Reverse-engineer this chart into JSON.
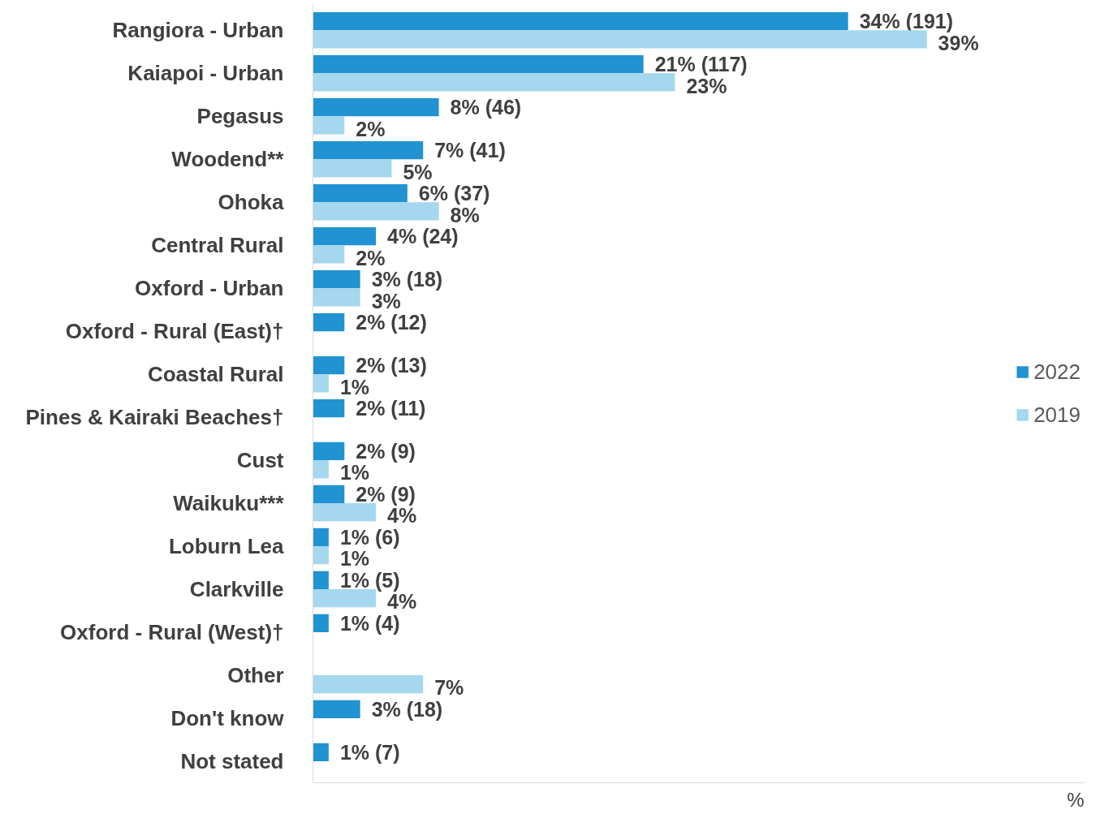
{
  "chart_data": {
    "type": "bar",
    "orientation": "horizontal",
    "xlabel": "%",
    "xlim": [
      0,
      49
    ],
    "tick_labels": "y",
    "legend": "right",
    "grid": false,
    "categories": [
      "Rangiora - Urban",
      "Kaiapoi - Urban",
      "Pegasus",
      "Woodend**",
      "Ohoka",
      "Central Rural",
      "Oxford - Urban",
      "Oxford - Rural (East)†",
      "Coastal Rural",
      "Pines & Kairaki Beaches†",
      "Cust",
      "Waikuku***",
      "Loburn Lea",
      "Clarkville",
      "Oxford - Rural (West)†",
      "Other",
      "Don't know",
      "Not stated"
    ],
    "series": [
      {
        "name": "2022",
        "color": "#2192d2",
        "values": [
          34,
          21,
          8,
          7,
          6,
          4,
          3,
          2,
          2,
          2,
          2,
          2,
          1,
          1,
          1,
          null,
          3,
          1
        ],
        "value_labels": [
          "34% (191)",
          "21% (117)",
          "8% (46)",
          "7% (41)",
          "6% (37)",
          "4% (24)",
          "3% (18)",
          "2% (12)",
          "2% (13)",
          "2% (11)",
          "2% (9)",
          "2% (9)",
          "1% (6)",
          "1% (5)",
          "1% (4)",
          null,
          "3% (18)",
          "1% (7)"
        ]
      },
      {
        "name": "2019",
        "color": "#a5d7ee",
        "values": [
          39,
          23,
          2,
          5,
          8,
          2,
          3,
          null,
          1,
          null,
          1,
          4,
          1,
          4,
          null,
          7,
          null,
          null
        ],
        "value_labels": [
          "39%",
          "23%",
          "2%",
          "5%",
          "8%",
          "2%",
          "3%",
          null,
          "1%",
          null,
          "1%",
          "4%",
          "1%",
          "4%",
          null,
          "7%",
          null,
          null
        ]
      }
    ]
  }
}
